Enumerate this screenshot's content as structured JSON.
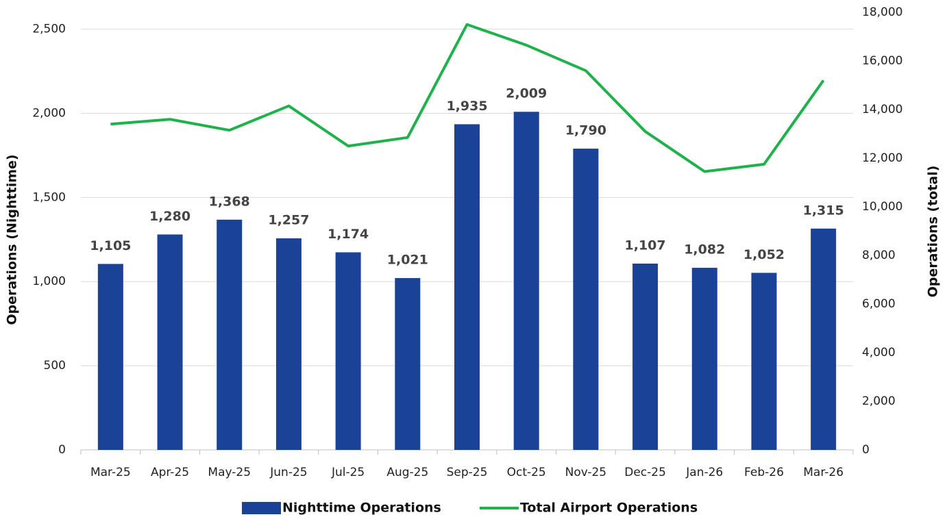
{
  "chart_data": {
    "type": "bar_line",
    "categories": [
      "Mar-25",
      "Apr-25",
      "May-25",
      "Jun-25",
      "Jul-25",
      "Aug-25",
      "Sep-25",
      "Oct-25",
      "Nov-25",
      "Dec-25",
      "Jan-26",
      "Feb-26",
      "Mar-26"
    ],
    "series": [
      {
        "name": "Nighttime Operations",
        "type": "bar",
        "color": "#1a4296",
        "axis": "y",
        "values": [
          1105,
          1280,
          1368,
          1257,
          1174,
          1021,
          1935,
          2009,
          1790,
          1107,
          1082,
          1052,
          1315
        ],
        "value_labels": [
          "1,105",
          "1,280",
          "1,368",
          "1,257",
          "1,174",
          "1,021",
          "1,935",
          "2,009",
          "1,790",
          "1,107",
          "1,082",
          "1,052",
          "1,315"
        ]
      },
      {
        "name": "Total Airport Operations",
        "type": "line",
        "color": "#1db34a",
        "axis": "y2",
        "values": [
          13400,
          13600,
          13150,
          14150,
          12500,
          12850,
          17500,
          16650,
          15600,
          13100,
          11450,
          11750,
          15200
        ]
      }
    ],
    "ylabel": "Operations (Nighttime)",
    "y2label": "Operations (total)",
    "ylim": [
      0,
      2600
    ],
    "yticks": [
      0,
      500,
      {
        "value": 1000,
        "label": "1,000"
      },
      {
        "value": 1500,
        "label": "1,500"
      },
      {
        "value": 2000,
        "label": "2,000"
      },
      {
        "value": 2500,
        "label": "2,500"
      }
    ],
    "y2lim": [
      0,
      18000
    ],
    "y2ticks": [
      0,
      {
        "value": 2000,
        "label": "2,000"
      },
      {
        "value": 4000,
        "label": "4,000"
      },
      {
        "value": 6000,
        "label": "6,000"
      },
      {
        "value": 8000,
        "label": "8,000"
      },
      {
        "value": 10000,
        "label": "10,000"
      },
      {
        "value": 12000,
        "label": "12,000"
      },
      {
        "value": 14000,
        "label": "14,000"
      },
      {
        "value": 16000,
        "label": "16,000"
      },
      {
        "value": 18000,
        "label": "18,000"
      }
    ],
    "grid": true,
    "legend": "bottom"
  }
}
